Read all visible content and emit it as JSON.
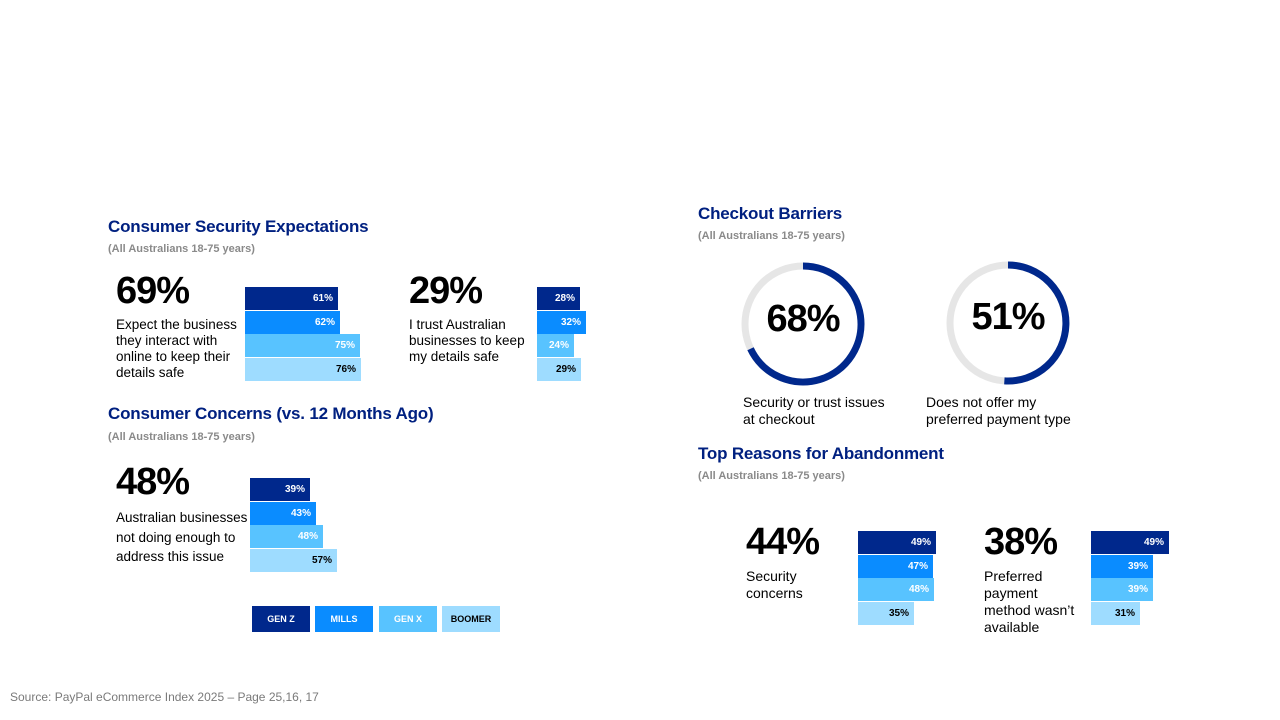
{
  "security_expectations": {
    "title": "Consumer Security Expectations",
    "subtitle": "(All Australians 18-75 years)"
  },
  "consumer_concerns": {
    "title": "Consumer Concerns (vs. 12 Months Ago)",
    "subtitle": "(All Australians 18-75 years)"
  },
  "checkout_barriers": {
    "title": "Checkout Barriers",
    "subtitle": "(All Australians 18-75 years)"
  },
  "abandonment": {
    "title": "Top Reasons for Abandonment",
    "subtitle": "(All Australians 18-75 years)"
  },
  "legend": [
    "GEN Z",
    "MILLS",
    "GEN X",
    "BOOMER"
  ],
  "colors": {
    "gen_z": "#00288c",
    "mills": "#0a8cff",
    "gen_x": "#58c3ff",
    "boomer": "#9edcff",
    "title": "#002080",
    "donut_track": "#e6e6e6"
  },
  "source": "Source: PayPal eCommerce Index 2025 – Page 25,16, 17",
  "chart_data": [
    {
      "type": "bar",
      "title": "Consumer Security Expectations",
      "headline": "69%",
      "description": "Expect the business they interact with online to keep their details safe",
      "categories": [
        "GEN Z",
        "MILLS",
        "GEN X",
        "BOOMER"
      ],
      "values": [
        61,
        62,
        75,
        76
      ],
      "labels": [
        "61%",
        "62%",
        "75%",
        "76%"
      ]
    },
    {
      "type": "bar",
      "title": "Consumer Security Expectations",
      "headline": "29%",
      "description": "I trust Australian businesses to keep my details safe",
      "categories": [
        "GEN Z",
        "MILLS",
        "GEN X",
        "BOOMER"
      ],
      "values": [
        28,
        32,
        24,
        29
      ],
      "labels": [
        "28%",
        "32%",
        "24%",
        "29%"
      ]
    },
    {
      "type": "bar",
      "title": "Consumer Concerns (vs. 12 Months Ago)",
      "headline": "48%",
      "description": "Australian businesses not doing enough to address this issue",
      "categories": [
        "GEN Z",
        "MILLS",
        "GEN X",
        "BOOMER"
      ],
      "values": [
        39,
        43,
        48,
        57
      ],
      "labels": [
        "39%",
        "43%",
        "48%",
        "57%"
      ]
    },
    {
      "type": "pie",
      "title": "Checkout Barriers",
      "value": 68,
      "label": "68%",
      "description": "Security or trust issues at checkout"
    },
    {
      "type": "pie",
      "title": "Checkout Barriers",
      "value": 51,
      "label": "51%",
      "description": "Does not offer my preferred payment type"
    },
    {
      "type": "bar",
      "title": "Top Reasons for Abandonment",
      "headline": "44%",
      "description": "Security concerns",
      "categories": [
        "GEN Z",
        "MILLS",
        "GEN X",
        "BOOMER"
      ],
      "values": [
        49,
        47,
        48,
        35
      ],
      "labels": [
        "49%",
        "47%",
        "48%",
        "35%"
      ]
    },
    {
      "type": "bar",
      "title": "Top Reasons for Abandonment",
      "headline": "38%",
      "description": "Preferred payment method wasn’t available",
      "categories": [
        "GEN Z",
        "MILLS",
        "GEN X",
        "BOOMER"
      ],
      "values": [
        49,
        39,
        39,
        31
      ],
      "labels": [
        "49%",
        "39%",
        "39%",
        "31%"
      ]
    }
  ]
}
